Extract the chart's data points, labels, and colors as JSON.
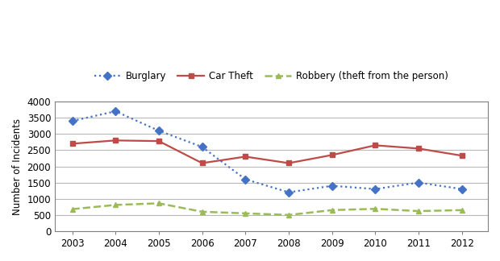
{
  "years": [
    2003,
    2004,
    2005,
    2006,
    2007,
    2008,
    2009,
    2010,
    2011,
    2012
  ],
  "burglary": [
    3400,
    3700,
    3100,
    2600,
    1600,
    1200,
    1400,
    1300,
    1500,
    1300
  ],
  "car_theft": [
    2700,
    2800,
    2780,
    2100,
    2300,
    2100,
    2350,
    2650,
    2550,
    2330
  ],
  "robbery": [
    680,
    810,
    860,
    600,
    550,
    500,
    650,
    690,
    620,
    650
  ],
  "burglary_color": "#4472C4",
  "car_theft_color": "#BE4B48",
  "robbery_color": "#9BBB59",
  "ylabel": "Number of Incidents",
  "ylim": [
    0,
    4000
  ],
  "yticks": [
    0,
    500,
    1000,
    1500,
    2000,
    2500,
    3000,
    3500,
    4000
  ],
  "legend_labels": [
    "Burglary",
    "Car Theft",
    "Robbery (theft from the person)"
  ],
  "background_color": "#ffffff",
  "plot_bg_color": "#ffffff",
  "grid_color": "#b8b8b8"
}
